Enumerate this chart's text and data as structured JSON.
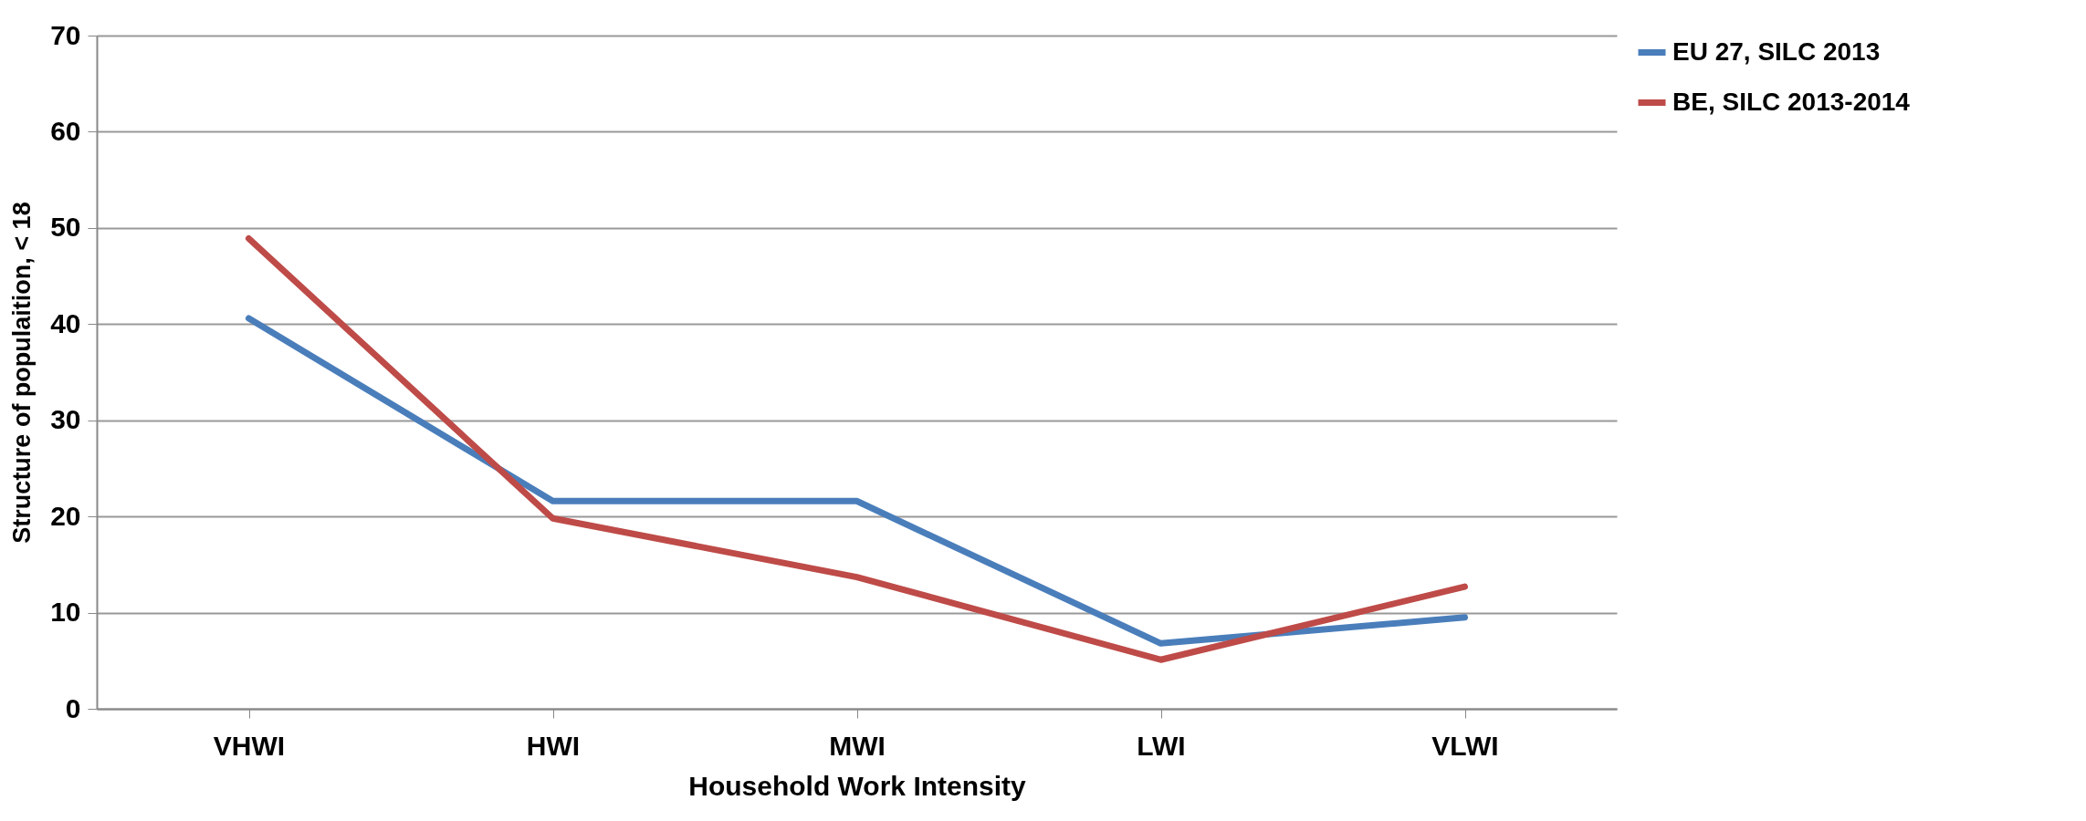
{
  "chart_data": {
    "type": "line",
    "xlabel": "Household Work Intensity",
    "ylabel": "Structure of populaition, < 18",
    "categories": [
      "VHWI",
      "HWI",
      "MWI",
      "LWI",
      "VLWI"
    ],
    "series": [
      {
        "name": "EU 27, SILC 2013",
        "color": "#4a7ebb",
        "values": [
          40.6,
          21.6,
          21.6,
          6.8,
          9.5
        ]
      },
      {
        "name": "BE, SILC 2013-2014",
        "color": "#be4b48",
        "values": [
          48.9,
          19.8,
          13.7,
          5.1,
          12.7
        ]
      }
    ],
    "ylim": [
      0,
      70
    ],
    "yticks": [
      0,
      10,
      20,
      30,
      40,
      50,
      60,
      70
    ],
    "grid": "y",
    "legend": "right",
    "marker": "none",
    "line_style": "solid"
  }
}
